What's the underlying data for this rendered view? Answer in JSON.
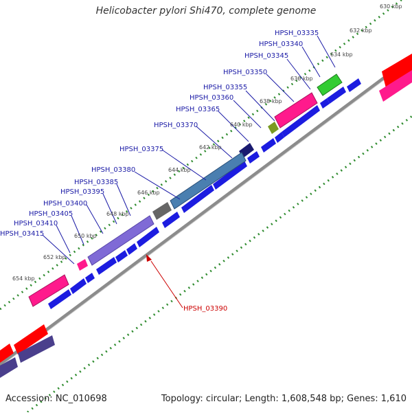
{
  "title": "Helicobacter pylori Shi470, complete genome",
  "accession_text": "Accession: NC_010698",
  "summary_text": "Topology: circular; Length: 1,608,548 bp; Genes: 1,610",
  "colors": {
    "gene_blue": "#1c1ce0",
    "label_blue": "#1a1aa6",
    "highlight_red": "#cc0000",
    "tick_green": "#2e8b2e",
    "backbone": "#8c8c8c",
    "pink": "#ff1a8c",
    "red": "#ff0000",
    "green": "#33cc33",
    "olive": "#7a9a22",
    "steel_blue": "#4a7fb0",
    "navy": "#1a1a70",
    "slate": "#666666",
    "lavender": "#7f6ad6"
  },
  "kbp_ticks": [
    "630 kbp",
    "632 kbp",
    "634 kbp",
    "636 kbp",
    "638 kbp",
    "640 kbp",
    "642 kbp",
    "644 kbp",
    "646 kbp",
    "648 kbp",
    "650 kbp",
    "652 kbp",
    "654 kbp"
  ],
  "gene_labels": [
    "HPSH_03335",
    "HPSH_03340",
    "HPSH_03345",
    "HPSH_03350",
    "HPSH_03355",
    "HPSH_03360",
    "HPSH_03365",
    "HPSH_03370",
    "HPSH_03375",
    "HPSH_03380",
    "HPSH_03385",
    "HPSH_03395",
    "HPSH_03400",
    "HPSH_03405",
    "HPSH_03410",
    "HPSH_03415"
  ],
  "highlight_label": "HPSH_03390"
}
